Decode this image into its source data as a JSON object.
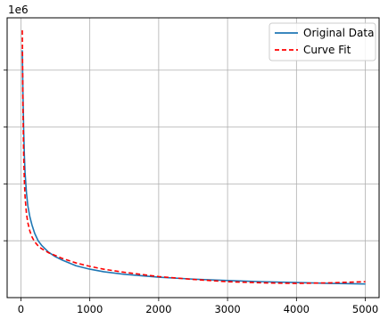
{
  "chart_data": {
    "type": "line",
    "title": "",
    "xlabel": "",
    "ylabel": "",
    "y_offset_label": "1e6",
    "xlim": [
      -200,
      5200
    ],
    "ylim": [
      0.0,
      4.92
    ],
    "grid": true,
    "legend_placement": "top-right",
    "x_ticks": [
      0,
      1000,
      2000,
      3000,
      4000,
      5000
    ],
    "x_tick_labels": [
      "0",
      "1000",
      "2000",
      "3000",
      "4000",
      "5000"
    ],
    "y_ticks": [
      1,
      2,
      3,
      4
    ],
    "series": [
      {
        "name": "Original Data",
        "color": "#1f77b4",
        "style": "solid",
        "x": [
          20,
          30,
          40,
          50,
          60,
          80,
          100,
          130,
          160,
          200,
          250,
          300,
          400,
          500,
          600,
          800,
          1000,
          1200,
          1500,
          2000,
          2500,
          3000,
          3500,
          4000,
          4500,
          5000
        ],
        "y": [
          4.35,
          3.55,
          2.95,
          2.5,
          2.2,
          1.85,
          1.62,
          1.42,
          1.28,
          1.13,
          1.0,
          0.92,
          0.8,
          0.72,
          0.66,
          0.56,
          0.5,
          0.455,
          0.41,
          0.36,
          0.325,
          0.3,
          0.28,
          0.265,
          0.25,
          0.24
        ]
      },
      {
        "name": "Curve Fit",
        "color": "#ff0000",
        "style": "dashed",
        "x": [
          20,
          30,
          40,
          50,
          60,
          80,
          100,
          130,
          160,
          200,
          250,
          300,
          400,
          500,
          600,
          800,
          1000,
          1200,
          1500,
          2000,
          2500,
          3000,
          3500,
          4000,
          4500,
          5000
        ],
        "y": [
          4.7,
          3.3,
          2.5,
          2.05,
          1.78,
          1.48,
          1.32,
          1.17,
          1.07,
          0.98,
          0.91,
          0.86,
          0.79,
          0.74,
          0.69,
          0.61,
          0.55,
          0.5,
          0.445,
          0.37,
          0.32,
          0.28,
          0.26,
          0.25,
          0.26,
          0.28
        ]
      }
    ]
  }
}
